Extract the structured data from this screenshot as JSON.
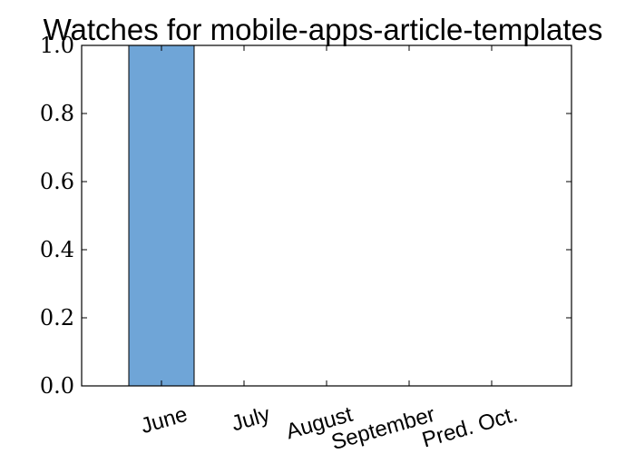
{
  "chart_data": {
    "type": "bar",
    "title": "Watches for mobile-apps-article-templates",
    "xlabel": "",
    "ylabel": "",
    "categories": [
      "June",
      "July",
      "August",
      "September",
      "Pred. Oct."
    ],
    "values": [
      1.0,
      0.0,
      0.0,
      0.0,
      0.0
    ],
    "ylim": [
      0.0,
      1.0
    ],
    "yticks": [
      "0.0",
      "0.2",
      "0.4",
      "0.6",
      "0.8",
      "1.0"
    ],
    "grid": false,
    "bar_color": "#6fa5d7",
    "bar_edge_color": "#000000"
  }
}
